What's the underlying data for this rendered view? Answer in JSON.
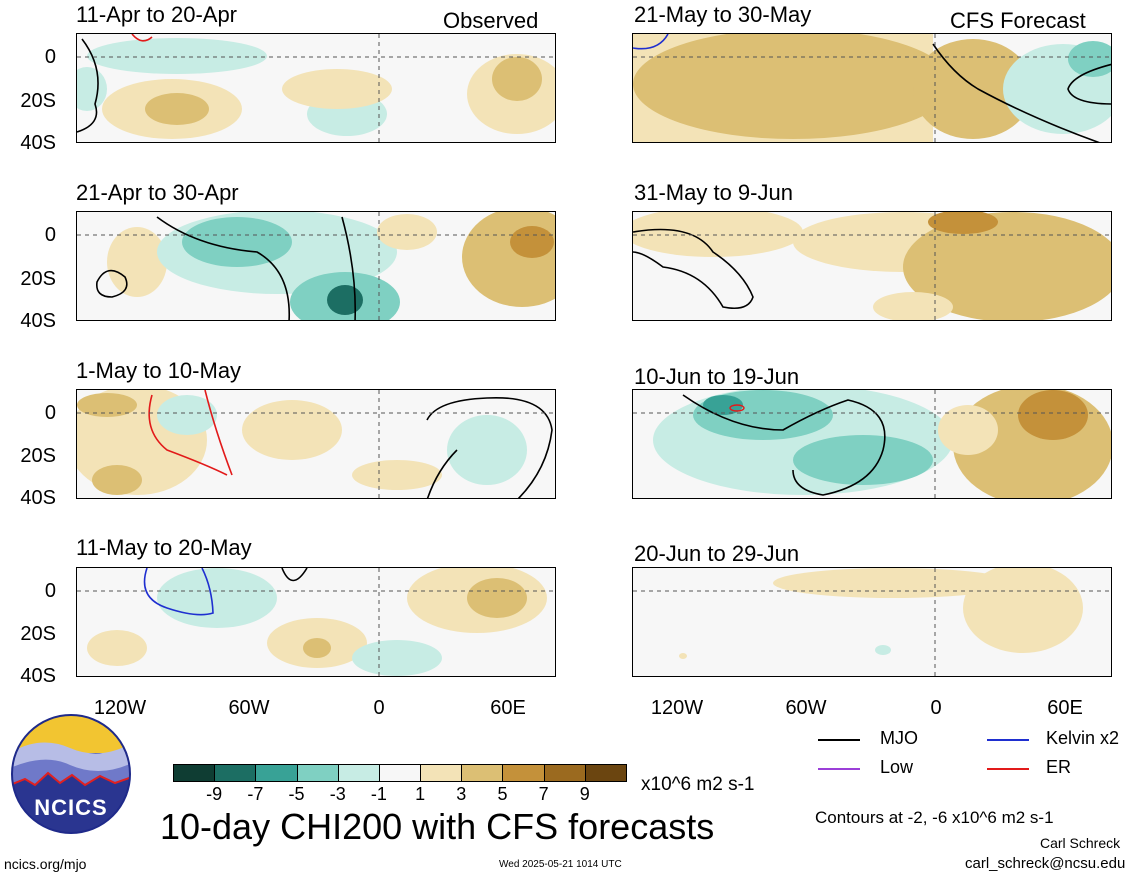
{
  "header": {
    "left_label": "Observed",
    "right_label": "CFS Forecast"
  },
  "panels": {
    "obs": [
      {
        "title": "11-Apr to 20-Apr"
      },
      {
        "title": "21-Apr to 30-Apr"
      },
      {
        "title": "1-May to 10-May"
      },
      {
        "title": "11-May to 20-May"
      }
    ],
    "fcst": [
      {
        "title": "21-May to 30-May"
      },
      {
        "title": "31-May to 9-Jun"
      },
      {
        "title": "10-Jun to 19-Jun"
      },
      {
        "title": "20-Jun to 29-Jun"
      }
    ]
  },
  "axes": {
    "lat_labels": [
      "0",
      "20S",
      "40S"
    ],
    "lon_labels": [
      "120W",
      "60W",
      "0",
      "60E"
    ]
  },
  "colorbar": {
    "ticks": [
      "-9",
      "-7",
      "-5",
      "-3",
      "-1",
      "1",
      "3",
      "5",
      "7",
      "9"
    ],
    "colors": [
      "#0f3d33",
      "#1c6e63",
      "#38a296",
      "#7fd0c2",
      "#c7ece4",
      "#f7f7f7",
      "#f3e3b7",
      "#dcbf74",
      "#c4913a",
      "#9b6a1f",
      "#6b4510"
    ],
    "units": "x10^6 m2 s-1"
  },
  "legend": {
    "items": [
      {
        "label": "MJO",
        "color": "#000000"
      },
      {
        "label": "Kelvin x2",
        "color": "#1f2fd0"
      },
      {
        "label": "Low",
        "color": "#9b3fd8"
      },
      {
        "label": "ER",
        "color": "#e21a1a"
      }
    ],
    "contours_note": "Contours at -2, -6 x10^6 m2 s-1"
  },
  "logo": {
    "text": "NCICS"
  },
  "footer": {
    "main_title": "10-day CHI200 with CFS forecasts",
    "url": "ncics.org/mjo",
    "timestamp": "Wed 2025-05-21 1014 UTC",
    "author": "Carl Schreck",
    "email": "carl_schreck@ncsu.edu"
  }
}
